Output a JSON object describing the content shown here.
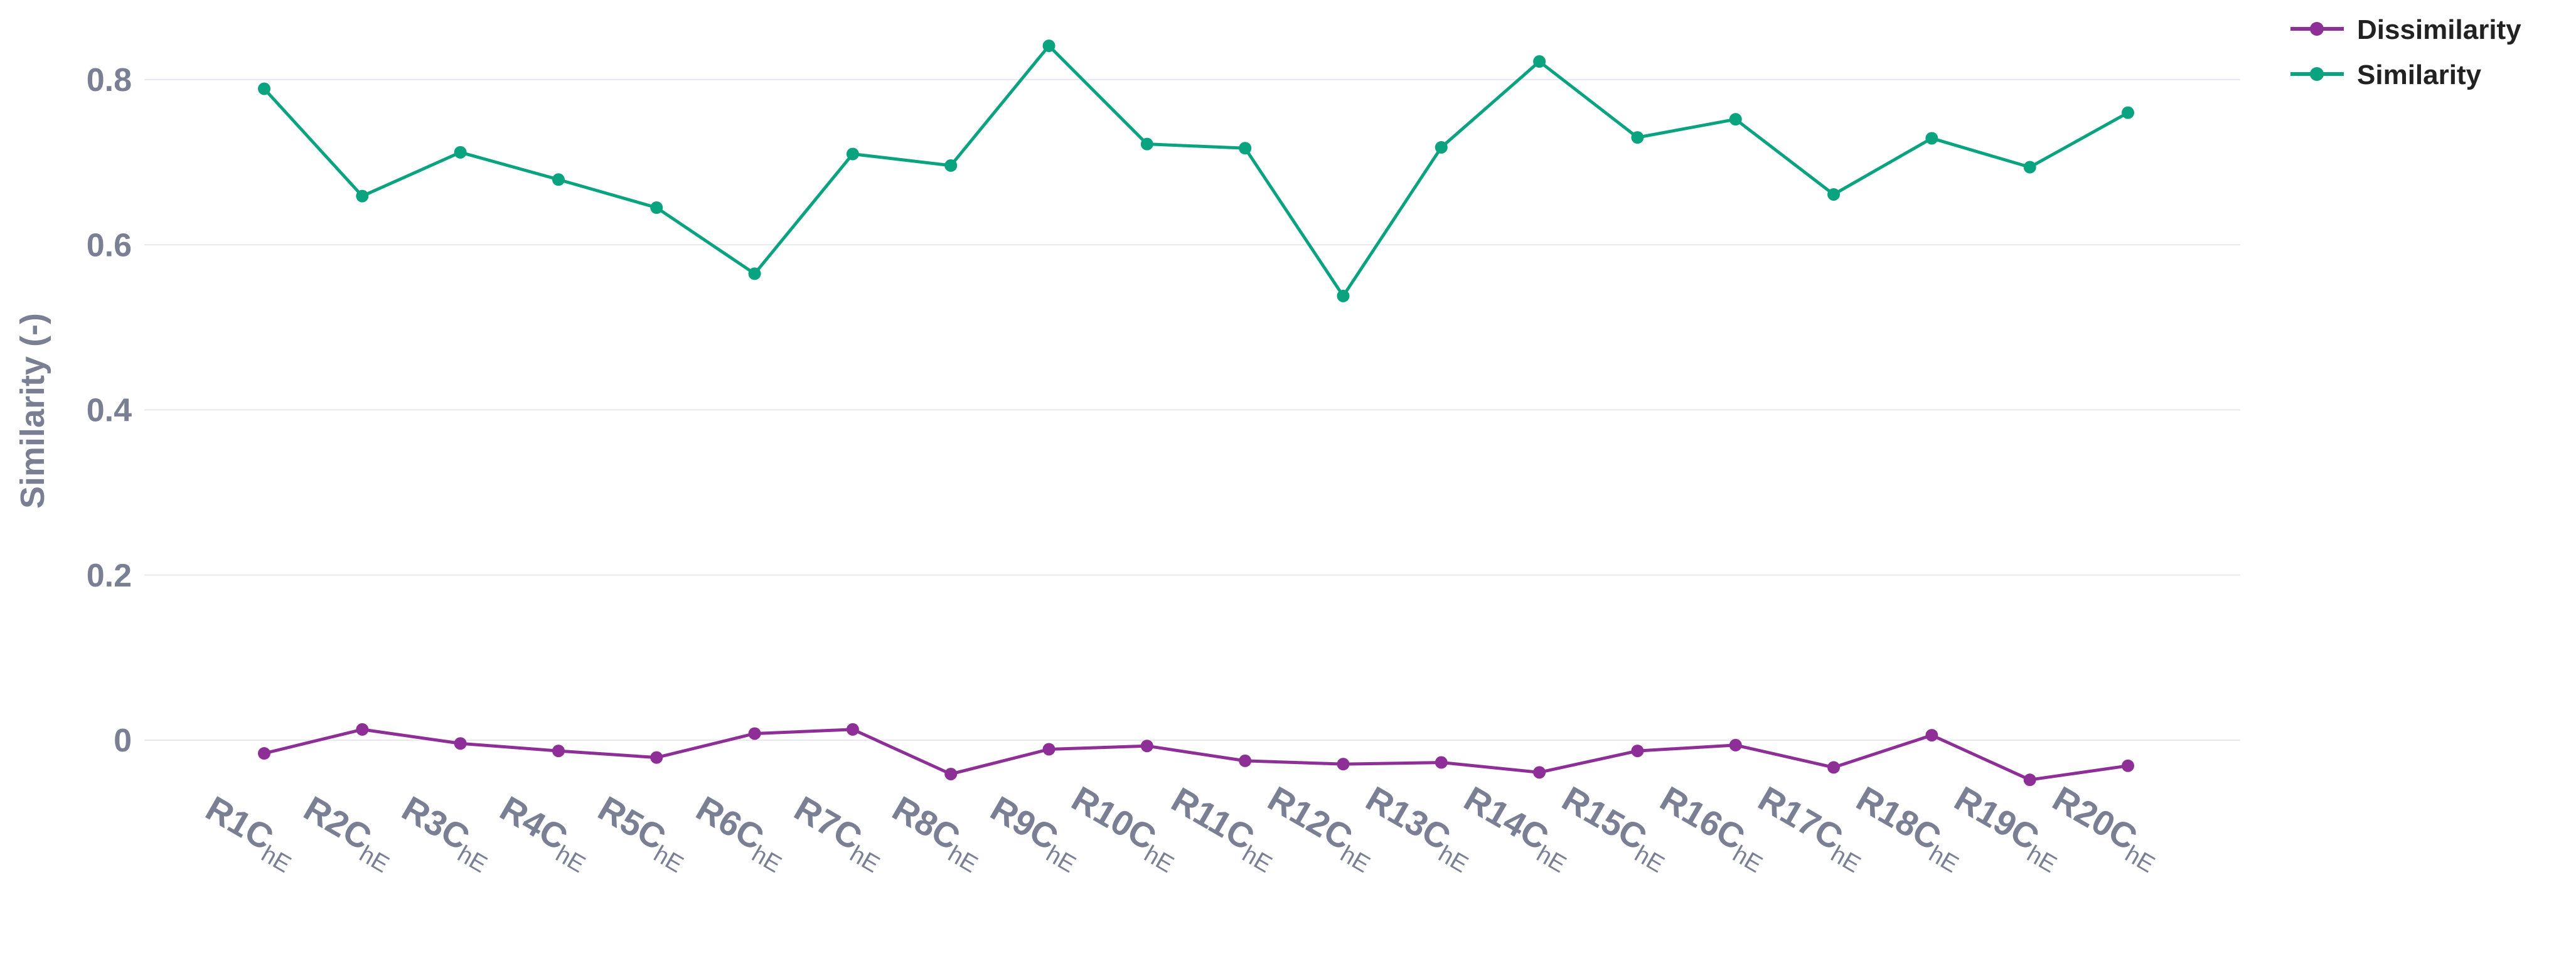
{
  "chart_data": {
    "type": "line",
    "ylabel": "Similarity (-)",
    "ylim": [
      -0.12,
      0.88
    ],
    "yticks": [
      0,
      0.2,
      0.4,
      0.6,
      0.8
    ],
    "yticks_labels": [
      "0",
      "0.2",
      "0.4",
      "0.6",
      "0.8"
    ],
    "x_tick_base": [
      "R1C",
      "R2C",
      "R3C",
      "R4C",
      "R5C",
      "R6C",
      "R7C",
      "R8C",
      "R9C",
      "R10C",
      "R11C",
      "R12C",
      "R13C",
      "R14C",
      "R15C",
      "R16C",
      "R17C",
      "R18C",
      "R19C",
      "R20C"
    ],
    "x_tick_subscript": "hE",
    "grid": true,
    "legend_position": "top-right",
    "series": [
      {
        "name": "Dissimilarity",
        "color": "#8e2f97",
        "values": [
          -0.016,
          0.013,
          -0.004,
          -0.013,
          -0.021,
          0.008,
          0.013,
          -0.041,
          -0.011,
          -0.007,
          -0.025,
          -0.029,
          -0.027,
          -0.039,
          -0.013,
          -0.006,
          -0.033,
          0.006,
          -0.048,
          -0.031
        ]
      },
      {
        "name": "Similarity",
        "color": "#0aa37f",
        "values": [
          0.789,
          0.659,
          0.712,
          0.679,
          0.645,
          0.565,
          0.71,
          0.696,
          0.841,
          0.722,
          0.717,
          0.538,
          0.718,
          0.822,
          0.73,
          0.752,
          0.661,
          0.729,
          0.694,
          0.76
        ]
      }
    ]
  }
}
